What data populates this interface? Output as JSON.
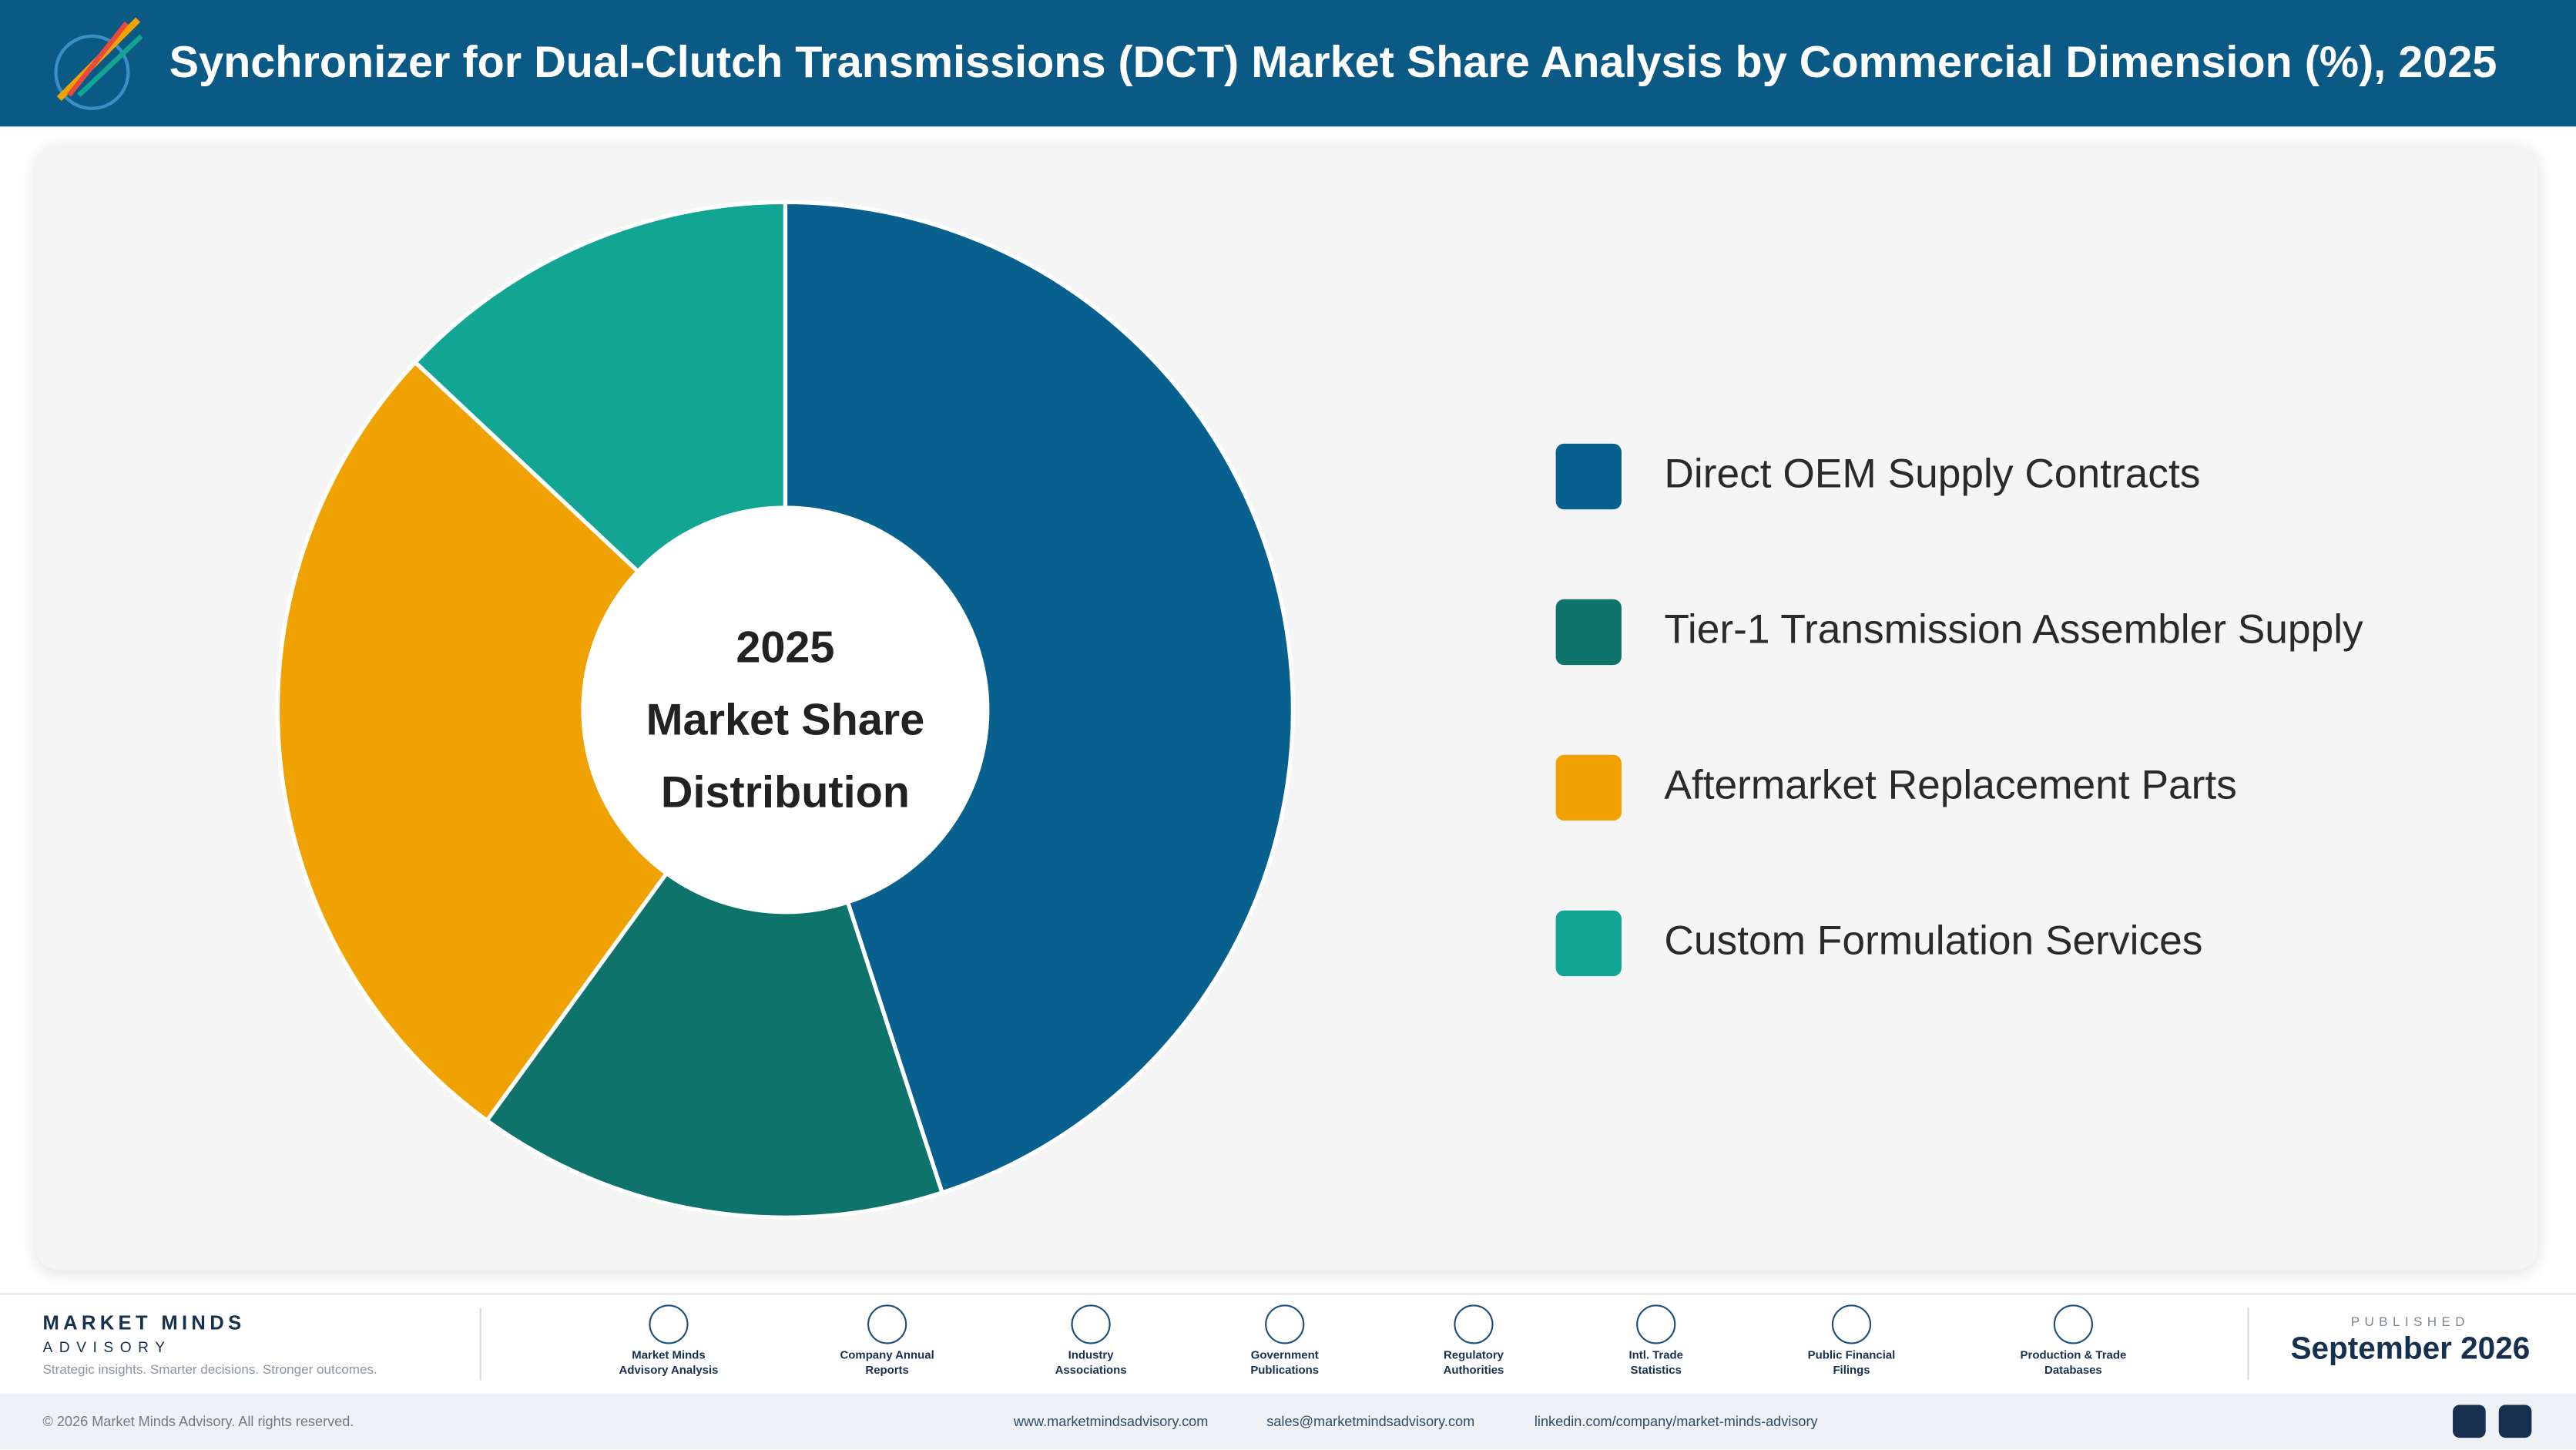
{
  "header": {
    "title": "Synchronizer for Dual-Clutch Transmissions (DCT) Market Share Analysis by Commercial Dimension (%), 2025"
  },
  "chart_data": {
    "type": "donut",
    "center_label": [
      "2025",
      "Market Share",
      "Distribution"
    ],
    "categories": [
      "Direct OEM Supply Contracts",
      "Tier-1 Transmission Assembler Supply",
      "Aftermarket Replacement Parts",
      "Custom Formulation Services"
    ],
    "values": [
      45,
      15,
      27,
      13
    ],
    "colors": [
      "#08608f",
      "#0d736b",
      "#f0a202",
      "#13a594"
    ]
  },
  "footer": {
    "brand": "MARKET MINDS",
    "brand_sub": "ADVISORY",
    "tagline": "Strategic insights. Smarter decisions. Stronger outcomes.",
    "sources": [
      "Market Minds Advisory Analysis",
      "Company Annual Reports",
      "Industry Associations",
      "Government Publications",
      "Regulatory Authorities",
      "Intl. Trade Statistics",
      "Public Financial Filings",
      "Production & Trade Databases"
    ],
    "published_label": "PUBLISHED",
    "published_date": "September 2026",
    "copyright": "© 2026 Market Minds Advisory. All rights reserved.",
    "links": [
      "www.marketmindsadvisory.com",
      "sales@marketmindsadvisory.com",
      "linkedin.com/company/market-minds-advisory"
    ]
  }
}
